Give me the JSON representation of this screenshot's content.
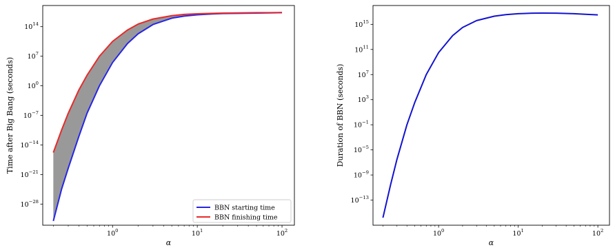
{
  "chart_data": [
    {
      "type": "line",
      "xlabel": "α",
      "ylabel": "Time after Big Bang (seconds)",
      "xscale": "log",
      "yscale": "log",
      "xlim": [
        0.15,
        140
      ],
      "ylim_exp": [
        -33,
        19
      ],
      "x_ticks": [
        {
          "base": "10",
          "exp": "0",
          "value": 1
        },
        {
          "base": "10",
          "exp": "1",
          "value": 10
        },
        {
          "base": "10",
          "exp": "2",
          "value": 100
        }
      ],
      "y_ticks": [
        {
          "base": "10",
          "exp": "14",
          "value": 14
        },
        {
          "base": "10",
          "exp": "7",
          "value": 7
        },
        {
          "base": "10",
          "exp": "0",
          "value": 0
        },
        {
          "base": "10",
          "exp": "−7",
          "value": -7
        },
        {
          "base": "10",
          "exp": "−14",
          "value": -14
        },
        {
          "base": "10",
          "exp": "−21",
          "value": -21
        },
        {
          "base": "10",
          "exp": "−28",
          "value": -28
        }
      ],
      "legend_position": "lower-right",
      "fill_between": {
        "color": "#999999"
      },
      "series": [
        {
          "name": "BBN starting time",
          "color": "#2525e8",
          "x": [
            0.2,
            0.25,
            0.3,
            0.4,
            0.5,
            0.7,
            1,
            1.5,
            2,
            3,
            5,
            7,
            10,
            15,
            20,
            30,
            50,
            70,
            100
          ],
          "y_log10": [
            -32,
            -24.5,
            -19.5,
            -12.0,
            -6.5,
            0,
            5.5,
            10.0,
            12.3,
            14.5,
            16.0,
            16.5,
            16.8,
            17.0,
            17.1,
            17.15,
            17.2,
            17.25,
            17.3
          ]
        },
        {
          "name": "BBN finishing time",
          "color": "#e82a2a",
          "x": [
            0.2,
            0.25,
            0.3,
            0.4,
            0.5,
            0.7,
            1,
            1.5,
            2,
            3,
            5,
            7,
            10,
            15,
            20,
            30,
            50,
            70,
            100
          ],
          "y_log10": [
            -15.8,
            -10.5,
            -6.5,
            -1.0,
            2.5,
            7.0,
            10.5,
            13.2,
            14.6,
            15.8,
            16.6,
            16.9,
            17.05,
            17.15,
            17.2,
            17.25,
            17.3,
            17.3,
            17.35
          ]
        }
      ]
    },
    {
      "type": "line",
      "xlabel": "α",
      "ylabel": "Duration of BBN (seconds)",
      "xscale": "log",
      "yscale": "log",
      "xlim": [
        0.15,
        140
      ],
      "ylim_exp": [
        -17,
        18
      ],
      "x_ticks": [
        {
          "base": "10",
          "exp": "0",
          "value": 1
        },
        {
          "base": "10",
          "exp": "1",
          "value": 10
        },
        {
          "base": "10",
          "exp": "2",
          "value": 100
        }
      ],
      "y_ticks": [
        {
          "base": "10",
          "exp": "15",
          "value": 15
        },
        {
          "base": "10",
          "exp": "11",
          "value": 11
        },
        {
          "base": "10",
          "exp": "7",
          "value": 7
        },
        {
          "base": "10",
          "exp": "3",
          "value": 3
        },
        {
          "base": "10",
          "exp": "−1",
          "value": -1
        },
        {
          "base": "10",
          "exp": "−5",
          "value": -5
        },
        {
          "base": "10",
          "exp": "−9",
          "value": -9
        },
        {
          "base": "10",
          "exp": "−13",
          "value": -13
        }
      ],
      "series": [
        {
          "color": "#1212d0",
          "x": [
            0.2,
            0.25,
            0.3,
            0.4,
            0.5,
            0.7,
            1,
            1.5,
            2,
            3,
            5,
            7,
            10,
            15,
            20,
            30,
            50,
            70,
            100
          ],
          "y_log10": [
            -15.8,
            -10.5,
            -6.5,
            -1.0,
            2.5,
            7.0,
            10.5,
            13.2,
            14.5,
            15.6,
            16.3,
            16.55,
            16.7,
            16.78,
            16.8,
            16.78,
            16.7,
            16.6,
            16.5
          ]
        }
      ]
    }
  ]
}
